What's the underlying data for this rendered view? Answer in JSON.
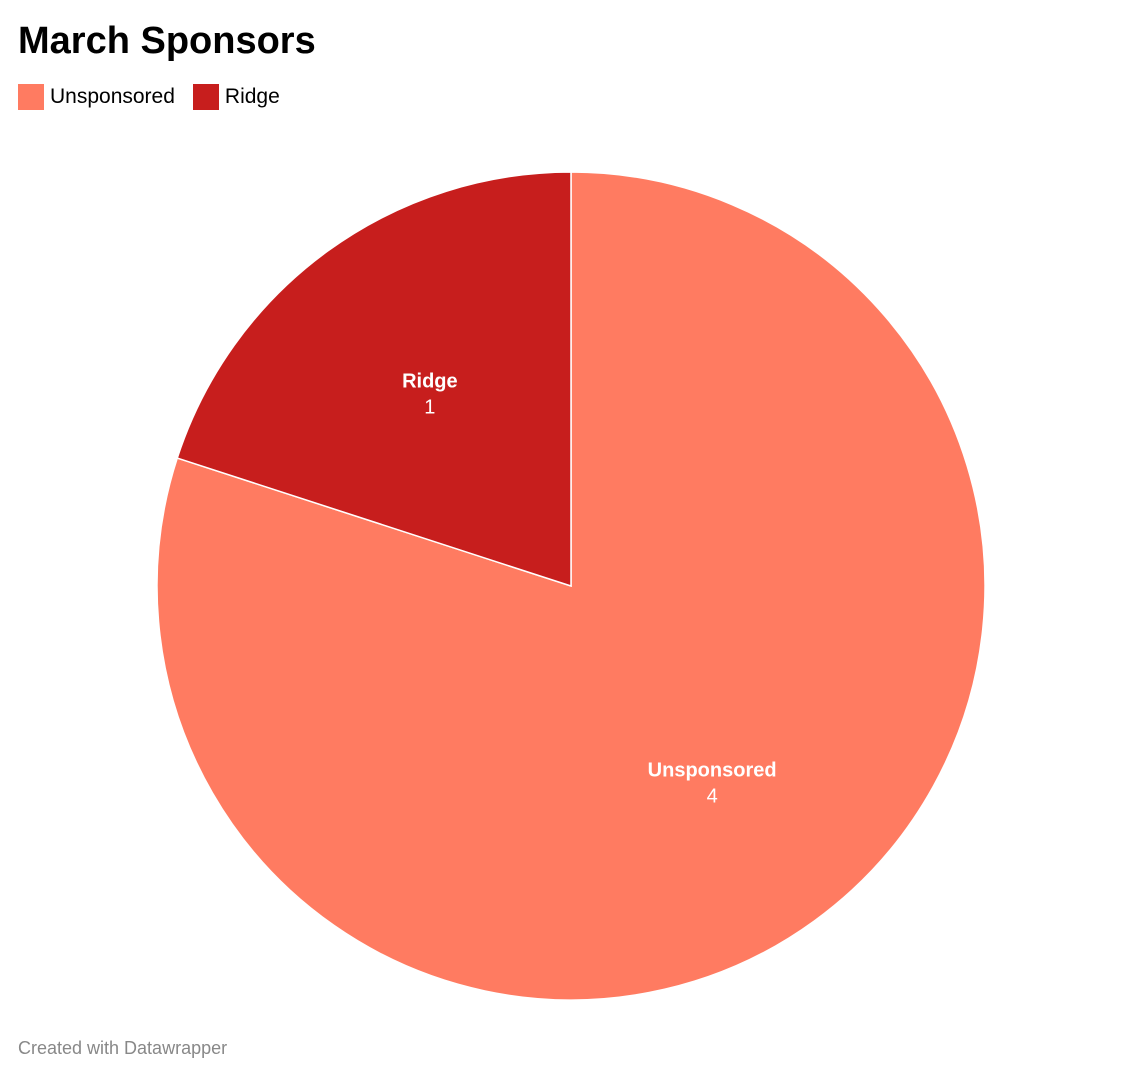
{
  "title": "March Sponsors",
  "legend": [
    {
      "label": "Unsponsored",
      "color": "#ff7b61"
    },
    {
      "label": "Ridge",
      "color": "#c71e1d"
    }
  ],
  "footer": "Created with Datawrapper",
  "chart_data": {
    "type": "pie",
    "title": "March Sponsors",
    "slices": [
      {
        "label": "Unsponsored",
        "value": 4,
        "color": "#ff7b61"
      },
      {
        "label": "Ridge",
        "value": 1,
        "color": "#c71e1d"
      }
    ],
    "legend_position": "top-left",
    "data_labels": true
  }
}
